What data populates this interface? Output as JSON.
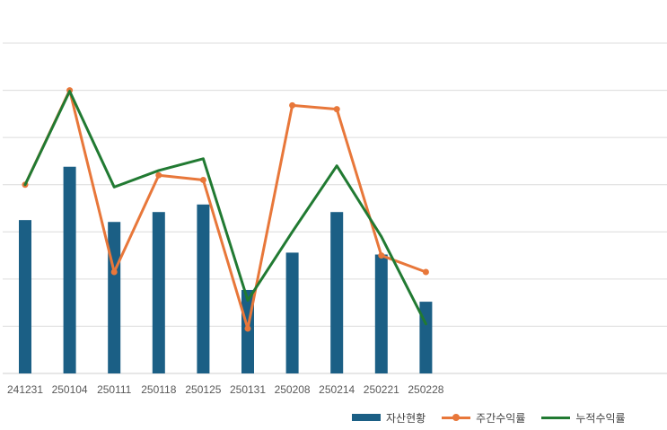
{
  "chart_data": {
    "type": "bar",
    "categories": [
      "241231",
      "250104",
      "250111",
      "250118",
      "250125",
      "250131",
      "250208",
      "250214",
      "250221",
      "250228"
    ],
    "series": [
      {
        "name": "자산현황",
        "type": "bar",
        "color": "#1b5f85",
        "values": [
          3.25,
          4.38,
          3.21,
          3.42,
          3.58,
          1.77,
          2.56,
          3.42,
          2.52,
          1.52
        ]
      },
      {
        "name": "주간수익률",
        "type": "line",
        "color": "#e8773a",
        "markers": true,
        "values": [
          4.0,
          6.0,
          2.15,
          4.2,
          4.1,
          0.95,
          5.68,
          5.6,
          2.5,
          2.15
        ]
      },
      {
        "name": "누적수익률",
        "type": "line",
        "color": "#217a32",
        "markers": false,
        "values": [
          4.0,
          5.98,
          3.95,
          4.3,
          4.55,
          1.55,
          3.0,
          4.4,
          2.9,
          1.05
        ]
      }
    ],
    "ylim": [
      0,
      7
    ],
    "grid": true,
    "legend_position": "bottom-right"
  }
}
